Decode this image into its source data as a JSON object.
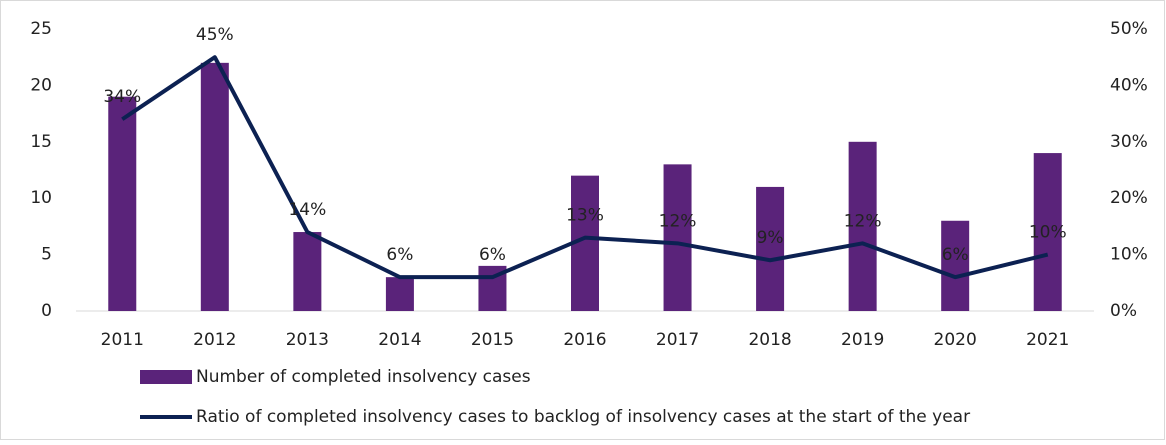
{
  "chart_data": {
    "type": "bar",
    "categories": [
      "2011",
      "2012",
      "2013",
      "2014",
      "2015",
      "2016",
      "2017",
      "2018",
      "2019",
      "2020",
      "2021"
    ],
    "series": [
      {
        "name": "Number of completed insolvency cases",
        "color": "#5a237a",
        "values": [
          19,
          22,
          7,
          3,
          4,
          12,
          13,
          11,
          15,
          8,
          14
        ]
      },
      {
        "name": "Ratio of completed insolvency cases to backlog of insolvency cases at the start of the year",
        "color": "#0c2152",
        "type": "line",
        "axis": "y2",
        "values": [
          34,
          45,
          14,
          6,
          6,
          13,
          12,
          9,
          12,
          6,
          10
        ],
        "value_labels": [
          "34%",
          "45%",
          "14%",
          "6%",
          "6%",
          "13%",
          "12%",
          "9%",
          "12%",
          "6%",
          "10%"
        ]
      }
    ],
    "ylim": [
      0,
      25
    ],
    "yticks": [
      0,
      5,
      10,
      15,
      20,
      25
    ],
    "y2lim": [
      0,
      50
    ],
    "y2ticks": [
      {
        "value": 0,
        "label": "0%"
      },
      {
        "value": 10,
        "label": "10%"
      },
      {
        "value": 20,
        "label": "20%"
      },
      {
        "value": 30,
        "label": "30%"
      },
      {
        "value": 40,
        "label": "40%"
      },
      {
        "value": 50,
        "label": "50%"
      }
    ],
    "legend": "bottom"
  }
}
